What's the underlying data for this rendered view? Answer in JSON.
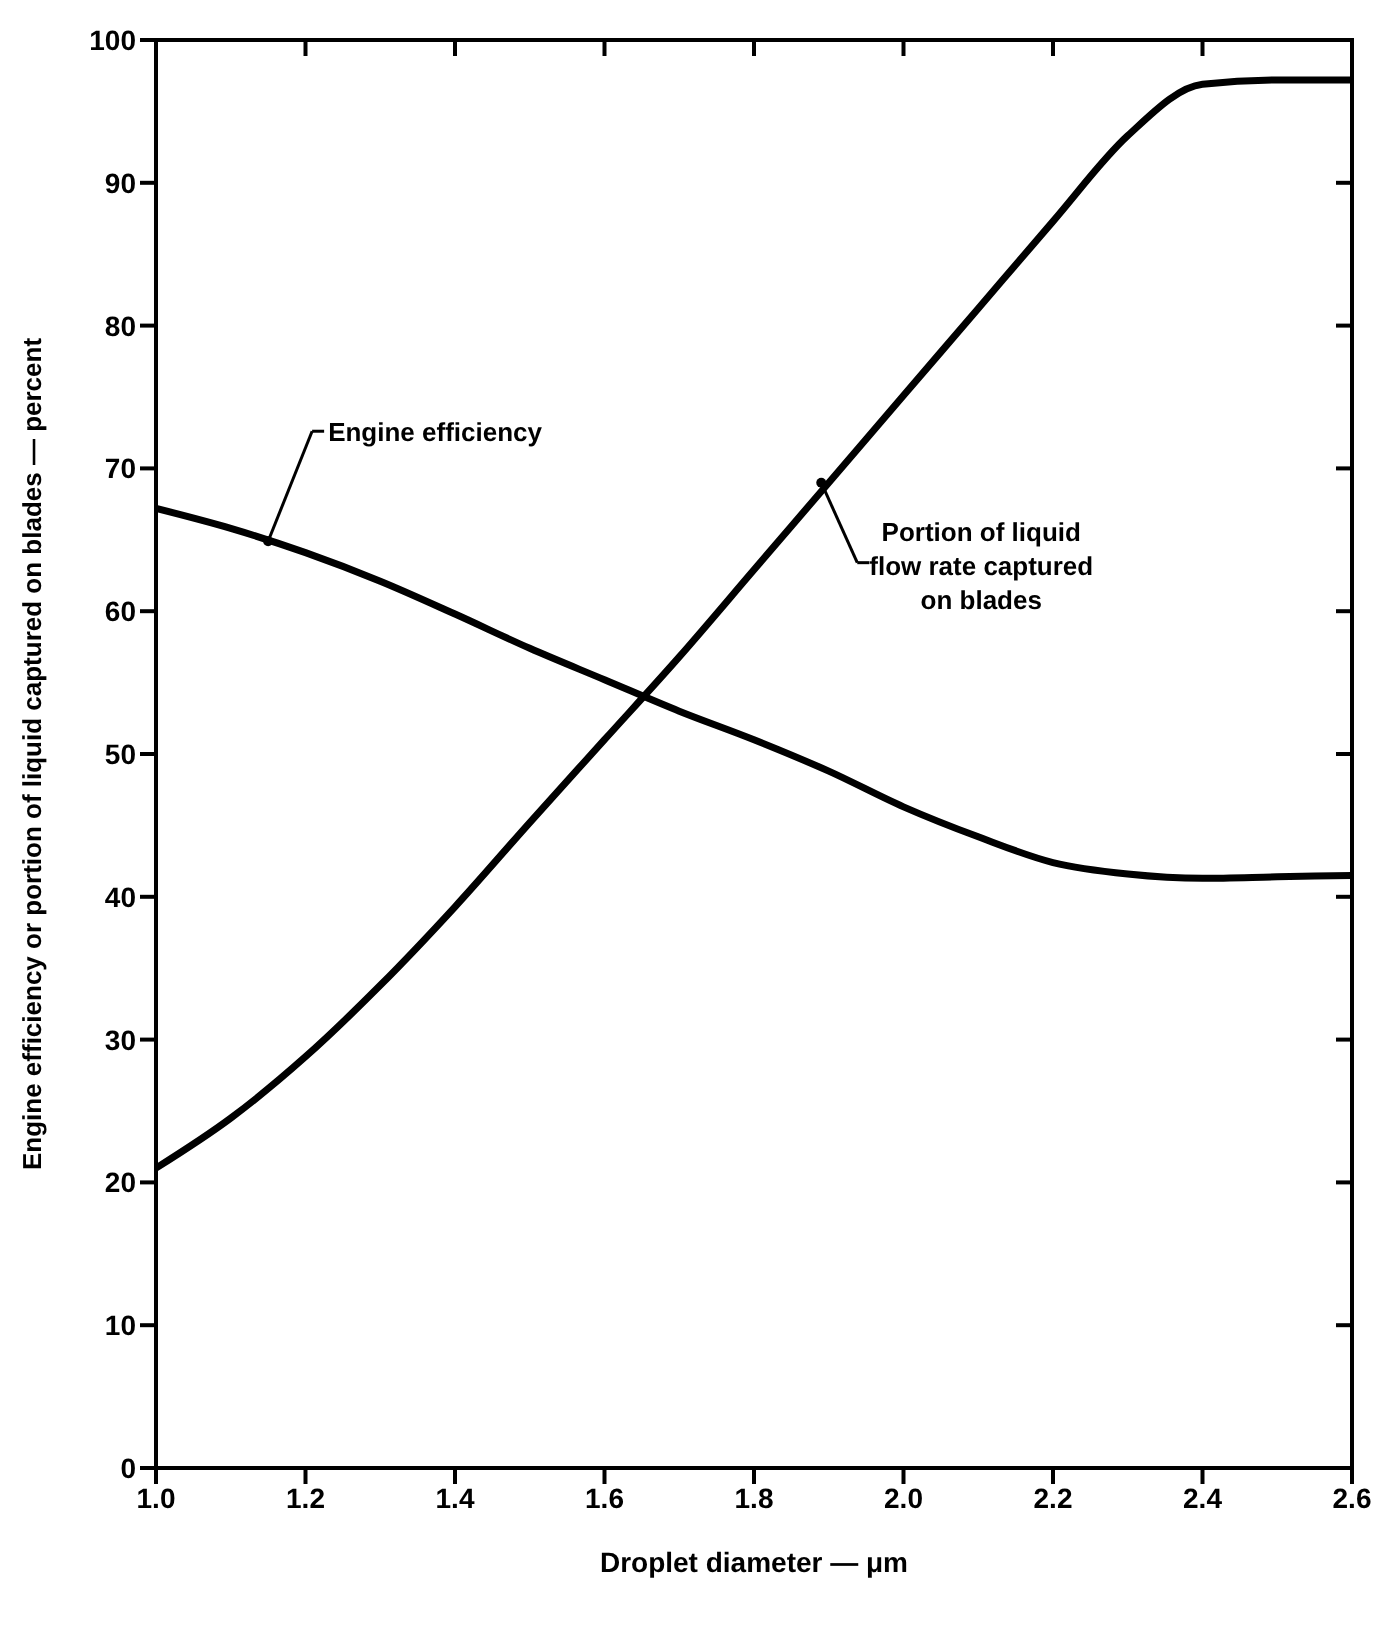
{
  "chart_data": {
    "type": "line",
    "xlabel": "Droplet diameter — μm",
    "ylabel": "Engine efficiency or portion of liquid captured on blades — percent",
    "x": [
      1.0,
      1.1,
      1.2,
      1.3,
      1.4,
      1.5,
      1.6,
      1.7,
      1.8,
      1.9,
      2.0,
      2.1,
      2.2,
      2.3,
      2.4,
      2.5,
      2.6
    ],
    "series": [
      {
        "color": "#000000",
        "values": [
          67.2,
          65.8,
          64.1,
          62.1,
          59.8,
          57.4,
          55.2,
          53,
          51,
          48.8,
          46.3,
          44.2,
          42.4,
          41.6,
          41.3,
          41.4,
          41.5
        ]
      },
      {
        "color": "#000000",
        "values": [
          21,
          24.5,
          28.8,
          33.8,
          39.3,
          45.2,
          51,
          56.8,
          62.9,
          69,
          75.1,
          81.2,
          87.3,
          93.3,
          96.9,
          97.2,
          97.2
        ]
      }
    ],
    "xlim": [
      1.0,
      2.6
    ],
    "xticks": [
      {
        "value": 1.0,
        "label": "1.0"
      },
      1.2,
      1.4,
      1.6,
      1.8,
      {
        "value": 2.0,
        "label": "2.0"
      },
      2.2,
      2.4,
      2.6
    ],
    "ylim": [
      0,
      100
    ],
    "yticks": [
      0,
      10,
      20,
      30,
      40,
      50,
      60,
      70,
      80,
      90,
      100
    ],
    "line_style": "solid",
    "annotations": [
      {
        "text": "Engine efficiency",
        "x": 1.15,
        "y": 64.9
      },
      {
        "text": "Portion of liquid\nflow rate captured\non blades",
        "x": 1.89,
        "y": 69.0
      }
    ]
  }
}
